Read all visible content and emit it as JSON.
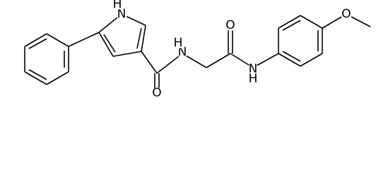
{
  "atoms": [
    {
      "label": "N"
    },
    {
      "label": "H"
    },
    {
      "label": "O"
    },
    {
      "label": "N"
    },
    {
      "label": "H"
    },
    {
      "label": "O"
    },
    {
      "label": "N"
    },
    {
      "label": "H"
    },
    {
      "label": "O"
    }
  ]
}
